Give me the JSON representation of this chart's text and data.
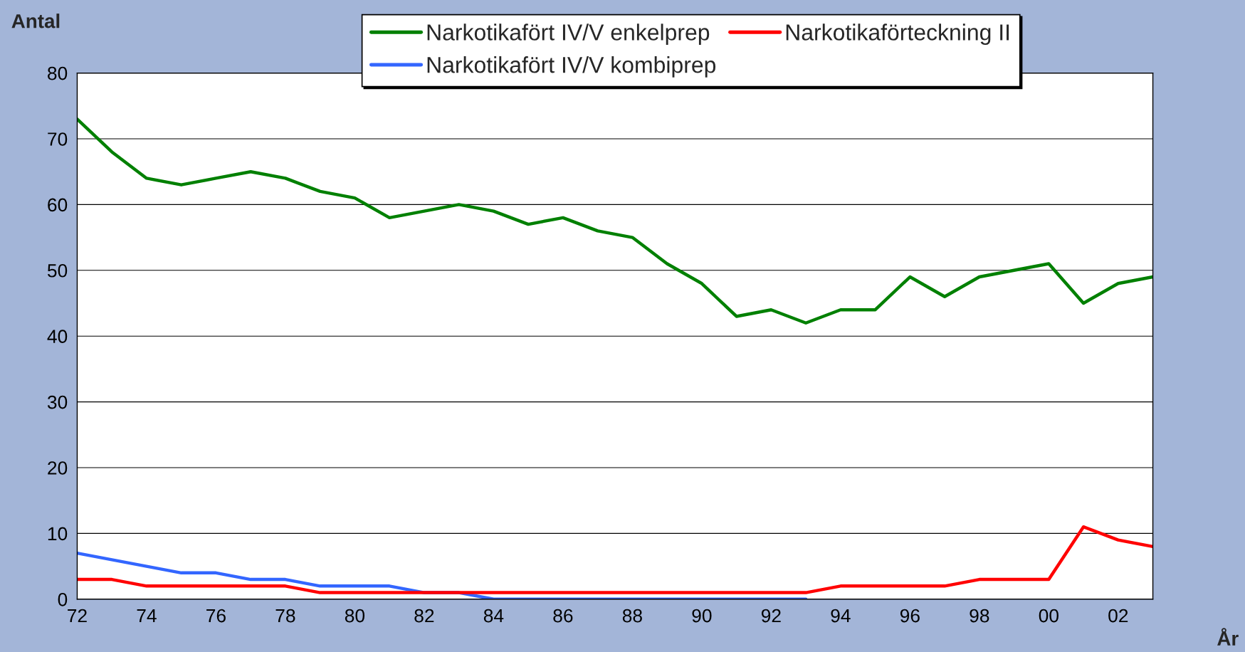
{
  "chart_data": {
    "type": "line",
    "ylabel": "Antal",
    "xlabel": "År",
    "categories": [
      "72",
      null,
      "74",
      null,
      "76",
      null,
      "78",
      null,
      "80",
      null,
      "82",
      null,
      "84",
      null,
      "86",
      null,
      "88",
      null,
      "90",
      null,
      "92",
      null,
      "94",
      null,
      "96",
      null,
      "98",
      null,
      "00",
      null,
      "02",
      null
    ],
    "series": [
      {
        "name": "Narkotikafört IV/V enkelprep",
        "color": "#008000",
        "values": [
          73,
          68,
          64,
          63,
          64,
          65,
          64,
          62,
          61,
          58,
          59,
          60,
          59,
          57,
          58,
          56,
          55,
          51,
          48,
          43,
          44,
          42,
          44,
          44,
          49,
          46,
          49,
          50,
          51,
          45,
          48,
          49
        ]
      },
      {
        "name": "Narkotikafört IV/V kombiprep",
        "color": "#3366ff",
        "values": [
          7,
          6,
          5,
          4,
          4,
          3,
          3,
          2,
          2,
          2,
          1,
          1,
          0,
          0,
          0,
          0,
          0,
          0,
          0,
          0,
          0,
          0,
          null,
          null,
          null,
          null,
          null,
          null,
          null,
          null,
          null,
          null
        ]
      },
      {
        "name": "Narkotikaförteckning II",
        "color": "#ff0000",
        "values": [
          3,
          3,
          2,
          2,
          2,
          2,
          2,
          1,
          1,
          1,
          1,
          1,
          1,
          1,
          1,
          1,
          1,
          1,
          1,
          1,
          1,
          1,
          2,
          2,
          2,
          2,
          3,
          3,
          3,
          11,
          9,
          8
        ]
      }
    ],
    "ylim": [
      0,
      80
    ],
    "yticks": [
      0,
      10,
      20,
      30,
      40,
      50,
      60,
      70,
      80
    ],
    "grid": "y",
    "legend": "top",
    "marker": "none",
    "line_style": "solid"
  }
}
